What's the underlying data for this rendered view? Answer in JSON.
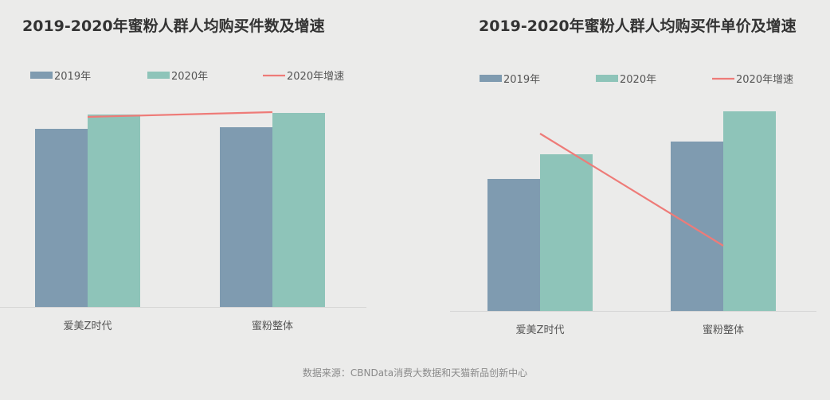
{
  "colors": {
    "s2019": "#7f9bb0",
    "s2020": "#8ec4b9",
    "growth": "#ee7b78",
    "axis": "#d6d6d6"
  },
  "source": "数据来源：CBNData消费大数据和天猫新品创新中心",
  "chart_data": [
    {
      "type": "bar",
      "title": "2019-2020年蜜粉人群人均购买件数及增速",
      "categories": [
        "爱美Z时代",
        "蜜粉整体"
      ],
      "series": [
        {
          "name": "2019年",
          "values": [
            224,
            226
          ]
        },
        {
          "name": "2020年",
          "values": [
            242,
            244
          ]
        },
        {
          "name": "2020年增速",
          "type": "line",
          "axis": "secondary",
          "values": [
            239,
            245
          ]
        }
      ],
      "ylim": [
        0,
        260
      ],
      "grid": false,
      "legend": "top"
    },
    {
      "type": "bar",
      "title": "2019-2020年蜜粉人群人均购买件单价及增速",
      "categories": [
        "爱美Z时代",
        "蜜粉整体"
      ],
      "series": [
        {
          "name": "2019年",
          "values": [
            166,
            213
          ]
        },
        {
          "name": "2020年",
          "values": [
            197,
            251
          ]
        },
        {
          "name": "2020年增速",
          "type": "line",
          "axis": "secondary",
          "values": [
            223,
            82
          ]
        }
      ],
      "ylim": [
        0,
        260
      ],
      "grid": false,
      "legend": "top"
    }
  ]
}
